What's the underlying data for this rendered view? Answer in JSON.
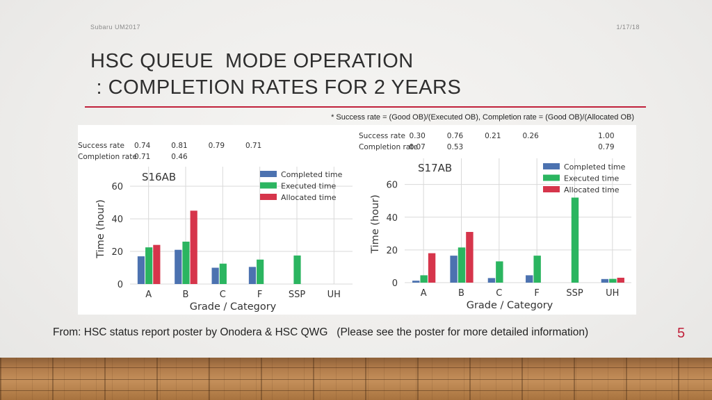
{
  "header": {
    "left_text": "Subaru UM2017",
    "right_text": "1/17/18"
  },
  "title": {
    "line1": "HSC QUEUE  MODE OPERATION",
    "line2": " : COMPLETION RATES FOR 2 YEARS"
  },
  "note": "* Success rate = (Good OB)/(Executed OB), Completion rate = (Good OB)/(Allocated OB)",
  "footer": {
    "text": "From: HSC status report poster by Onodera & HSC QWG   (Please see the poster for more detailed information)",
    "page_number": "5"
  },
  "colors": {
    "completed": "#4c72b0",
    "executed": "#2bb560",
    "allocated": "#d6354b",
    "accent": "#c0203a"
  },
  "chart_data": [
    {
      "type": "bar",
      "panel_label": "S16AB",
      "categories": [
        "A",
        "B",
        "C",
        "F",
        "SSP",
        "UH"
      ],
      "series": [
        {
          "name": "Completed time",
          "values": [
            17,
            21,
            10,
            10.5,
            null,
            null
          ]
        },
        {
          "name": "Executed time",
          "values": [
            22.5,
            26,
            12.5,
            15,
            17.5,
            null
          ]
        },
        {
          "name": "Allocated time",
          "values": [
            24,
            45,
            null,
            null,
            null,
            null
          ]
        }
      ],
      "rates": {
        "success_label": "Success rate",
        "completion_label": "Completion rate",
        "success": [
          "0.74",
          "0.81",
          "0.79",
          "0.71",
          "",
          ""
        ],
        "completion": [
          "0.71",
          "0.46",
          "",
          "",
          "",
          ""
        ]
      },
      "xlabel": "Grade / Category",
      "ylabel": "Time (hour)",
      "ylim": [
        0,
        72
      ],
      "yticks": [
        0,
        20,
        40,
        60
      ],
      "grid": true,
      "legend": "top-right"
    },
    {
      "type": "bar",
      "panel_label": "S17AB",
      "categories": [
        "A",
        "B",
        "C",
        "F",
        "SSP",
        "UH"
      ],
      "series": [
        {
          "name": "Completed time",
          "values": [
            1.2,
            16.5,
            2.8,
            4.5,
            null,
            2.2
          ]
        },
        {
          "name": "Executed time",
          "values": [
            4.5,
            21.5,
            13,
            16.5,
            52,
            2.3
          ]
        },
        {
          "name": "Allocated time",
          "values": [
            18,
            31,
            null,
            null,
            null,
            3
          ]
        }
      ],
      "rates": {
        "success_label": "Success rate",
        "completion_label": "Completion rate",
        "success": [
          "0.30",
          "0.76",
          "0.21",
          "0.26",
          "",
          "1.00"
        ],
        "completion": [
          "0.07",
          "0.53",
          "",
          "",
          "",
          "0.79"
        ]
      },
      "xlabel": "Grade / Category",
      "ylabel": "Time (hour)",
      "ylim": [
        0,
        76
      ],
      "yticks": [
        0,
        20,
        40,
        60
      ],
      "grid": true,
      "legend": "top-right"
    }
  ]
}
